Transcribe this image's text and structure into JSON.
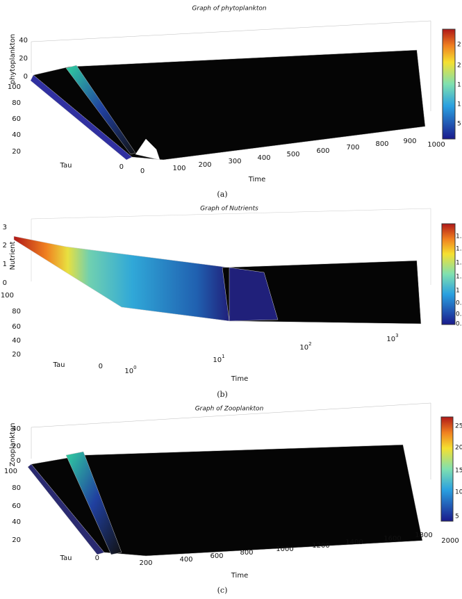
{
  "panels": [
    {
      "title": "Graph of phytoplankton",
      "caption": "(a)",
      "z_label": "phytoplankton",
      "tau_label": "Tau",
      "time_label": "Time",
      "z_ticks": [
        40,
        20,
        0
      ],
      "tau_ticks": [
        100,
        80,
        60,
        40,
        20,
        0
      ],
      "time_ticks": [
        0,
        100,
        200,
        300,
        400,
        500,
        600,
        700,
        800,
        900,
        1000
      ],
      "colorbar_labels": [
        "2",
        "2",
        "1",
        "1",
        "5"
      ]
    },
    {
      "title": "Graph of Nutrients",
      "caption": "(b)",
      "z_label": "Nutrient",
      "tau_label": "Tau",
      "time_label": "Time",
      "z_ticks": [
        3,
        2,
        1,
        0
      ],
      "tau_ticks": [
        100,
        80,
        60,
        40,
        20,
        0
      ],
      "time_ticks": [
        {
          "base": "10",
          "exp": "0"
        },
        {
          "base": "10",
          "exp": "1"
        },
        {
          "base": "10",
          "exp": "2"
        },
        {
          "base": "10",
          "exp": "3"
        }
      ],
      "colorbar_labels": [
        "1.",
        "1.",
        "1.",
        "1.",
        "1",
        "0.",
        "0.",
        "0."
      ]
    },
    {
      "title": "Graph of Zooplankton",
      "caption": "(c)",
      "z_label": "Zooplankton",
      "tau_label": "Tau",
      "time_label": "Time",
      "z_ticks": [
        40,
        20,
        0
      ],
      "tau_ticks": [
        100,
        80,
        60,
        40,
        20,
        0
      ],
      "time_ticks": [
        200,
        400,
        600,
        800,
        1000,
        1200,
        1400,
        1600,
        1800,
        2000
      ],
      "colorbar_labels": [
        "25",
        "20",
        "15",
        "10",
        "5"
      ]
    }
  ]
}
